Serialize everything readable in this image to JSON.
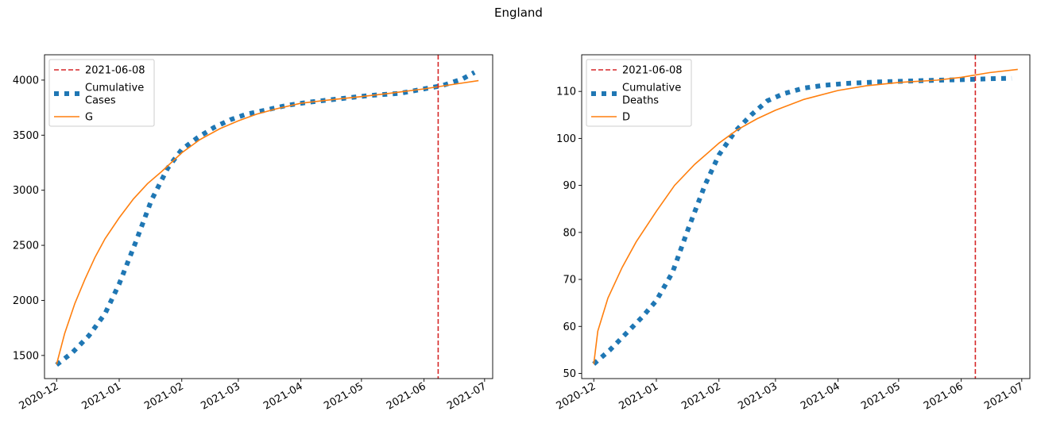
{
  "figure": {
    "title": "England"
  },
  "chart_data": [
    {
      "type": "line",
      "x_type": "date",
      "xlim": [
        "2020-11-25",
        "2021-07-05"
      ],
      "ylim": [
        1290,
        4230
      ],
      "x_ticks": [
        "2020-12-01",
        "2021-01-01",
        "2021-02-01",
        "2021-03-01",
        "2021-04-01",
        "2021-05-01",
        "2021-06-01",
        "2021-07-01"
      ],
      "x_tick_labels": [
        "2020-12",
        "2021-01",
        "2021-02",
        "2021-03",
        "2021-04",
        "2021-05",
        "2021-06",
        "2021-07"
      ],
      "y_ticks": [
        1500,
        2000,
        2500,
        3000,
        3500,
        4000
      ],
      "y_tick_labels": [
        "1500",
        "2000",
        "2500",
        "3000",
        "3500",
        "4000"
      ],
      "legend_position": "upper-left",
      "vline": {
        "x": "2021-06-08",
        "label": "2021-06-08",
        "color": "#d62728",
        "style": "dashed"
      },
      "series": [
        {
          "name": "Cumulative\nCases",
          "color": "#1f77b4",
          "style": "dotted",
          "x": [
            "2020-12-01",
            "2020-12-09",
            "2020-12-17",
            "2020-12-25",
            "2021-01-01",
            "2021-01-09",
            "2021-01-17",
            "2021-01-25",
            "2021-02-01",
            "2021-02-09",
            "2021-02-17",
            "2021-02-25",
            "2021-03-05",
            "2021-03-15",
            "2021-03-25",
            "2021-04-05",
            "2021-04-20",
            "2021-05-05",
            "2021-05-20",
            "2021-06-01",
            "2021-06-10",
            "2021-06-20",
            "2021-06-26"
          ],
          "y": [
            1415,
            1530,
            1680,
            1880,
            2150,
            2520,
            2910,
            3200,
            3370,
            3480,
            3570,
            3640,
            3690,
            3730,
            3770,
            3800,
            3830,
            3860,
            3880,
            3920,
            3950,
            4010,
            4070
          ]
        },
        {
          "name": "G",
          "color": "#ff7f0e",
          "style": "solid",
          "x": [
            "2020-12-01",
            "2020-12-05",
            "2020-12-10",
            "2020-12-15",
            "2020-12-20",
            "2020-12-25",
            "2021-01-01",
            "2021-01-08",
            "2021-01-15",
            "2021-01-22",
            "2021-02-01",
            "2021-02-10",
            "2021-02-20",
            "2021-03-01",
            "2021-03-10",
            "2021-03-20",
            "2021-04-01",
            "2021-04-15",
            "2021-05-01",
            "2021-05-15",
            "2021-06-01",
            "2021-06-15",
            "2021-06-28"
          ],
          "y": [
            1420,
            1700,
            1970,
            2190,
            2390,
            2560,
            2750,
            2920,
            3060,
            3170,
            3340,
            3460,
            3560,
            3630,
            3690,
            3740,
            3790,
            3820,
            3850,
            3880,
            3920,
            3960,
            3995
          ]
        }
      ]
    },
    {
      "type": "line",
      "x_type": "date",
      "xlim": [
        "2020-11-25",
        "2021-07-05"
      ],
      "ylim": [
        48.9,
        117.8
      ],
      "x_ticks": [
        "2020-12-01",
        "2021-01-01",
        "2021-02-01",
        "2021-03-01",
        "2021-04-01",
        "2021-05-01",
        "2021-06-01",
        "2021-07-01"
      ],
      "x_tick_labels": [
        "2020-12",
        "2021-01",
        "2021-02",
        "2021-03",
        "2021-04",
        "2021-05",
        "2021-06",
        "2021-07"
      ],
      "y_ticks": [
        50,
        60,
        70,
        80,
        90,
        100,
        110
      ],
      "y_tick_labels": [
        "50",
        "60",
        "70",
        "80",
        "90",
        "100",
        "110"
      ],
      "legend_position": "upper-left",
      "vline": {
        "x": "2021-06-08",
        "label": "2021-06-08",
        "color": "#d62728",
        "style": "dashed"
      },
      "series": [
        {
          "name": "Cumulative\nDeaths",
          "color": "#1f77b4",
          "style": "dotted",
          "x": [
            "2020-12-01",
            "2020-12-09",
            "2020-12-17",
            "2020-12-25",
            "2021-01-01",
            "2021-01-09",
            "2021-01-17",
            "2021-01-25",
            "2021-02-01",
            "2021-02-09",
            "2021-02-17",
            "2021-02-25",
            "2021-03-05",
            "2021-03-15",
            "2021-03-25",
            "2021-04-05",
            "2021-04-20",
            "2021-05-05",
            "2021-05-20",
            "2021-06-01",
            "2021-06-15",
            "2021-06-26"
          ],
          "y": [
            52,
            55,
            58.5,
            62,
            65.5,
            71.5,
            81,
            90,
            96.5,
            101.5,
            105,
            108,
            109.5,
            110.7,
            111.3,
            111.7,
            112,
            112.2,
            112.4,
            112.5,
            112.7,
            112.8
          ]
        },
        {
          "name": "D",
          "color": "#ff7f0e",
          "style": "solid",
          "x": [
            "2020-12-01",
            "2020-12-03",
            "2020-12-08",
            "2020-12-15",
            "2020-12-22",
            "2021-01-01",
            "2021-01-10",
            "2021-01-20",
            "2021-02-01",
            "2021-02-10",
            "2021-02-20",
            "2021-03-01",
            "2021-03-15",
            "2021-04-01",
            "2021-04-15",
            "2021-05-01",
            "2021-05-20",
            "2021-06-01",
            "2021-06-15",
            "2021-06-29"
          ],
          "y": [
            52,
            59,
            66,
            72.5,
            78,
            84.5,
            90,
            94.5,
            99,
            101.8,
            104.2,
            106,
            108.3,
            110.2,
            111.2,
            111.9,
            112.4,
            113,
            114,
            114.7
          ]
        }
      ]
    }
  ]
}
